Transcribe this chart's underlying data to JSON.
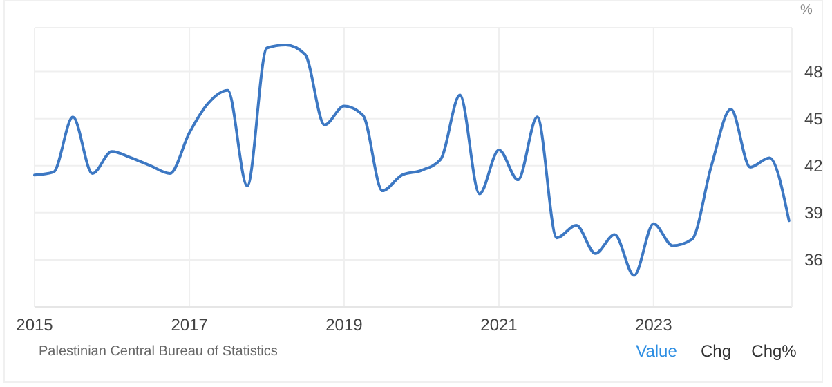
{
  "chart_data": {
    "type": "line",
    "ylabel": "%",
    "x": [
      "2015-01",
      "2015-04",
      "2015-07",
      "2015-10",
      "2016-01",
      "2016-04",
      "2016-07",
      "2016-10",
      "2017-01",
      "2017-04",
      "2017-07",
      "2017-10",
      "2018-01",
      "2018-04",
      "2018-07",
      "2018-10",
      "2019-01",
      "2019-04",
      "2019-07",
      "2019-10",
      "2020-01",
      "2020-04",
      "2020-07",
      "2020-10",
      "2021-01",
      "2021-04",
      "2021-07",
      "2021-10",
      "2022-01",
      "2022-04",
      "2022-07",
      "2022-10",
      "2023-01",
      "2023-04",
      "2023-07",
      "2023-10",
      "2024-01",
      "2024-04",
      "2024-07",
      "2024-10"
    ],
    "series": [
      {
        "color": "#3d78c3",
        "values": [
          41.4,
          41.6,
          45.1,
          41.5,
          42.9,
          42.5,
          42.0,
          41.5,
          44.1,
          46.0,
          46.8,
          40.7,
          49.5,
          49.7,
          49.1,
          44.6,
          45.8,
          45.2,
          40.4,
          41.4,
          41.7,
          42.4,
          46.5,
          40.2,
          43.0,
          41.1,
          45.1,
          37.4,
          38.2,
          36.4,
          37.6,
          35.0,
          38.3,
          36.9,
          37.3,
          42.0,
          45.6,
          41.9,
          42.5,
          38.5
        ]
      }
    ],
    "xlim": [
      "2015-01",
      "2024-10-15"
    ],
    "xticks": [
      "2015",
      "2017",
      "2019",
      "2021",
      "2023"
    ],
    "ylim": [
      33,
      50.8
    ],
    "yticks": [
      36,
      39,
      42,
      45,
      48
    ],
    "grid": true,
    "marker": "none",
    "line_style": "solid",
    "annotations": [
      "Palestinian Central Bureau of Statistics",
      "Value",
      "Chg",
      "Chg%"
    ]
  }
}
